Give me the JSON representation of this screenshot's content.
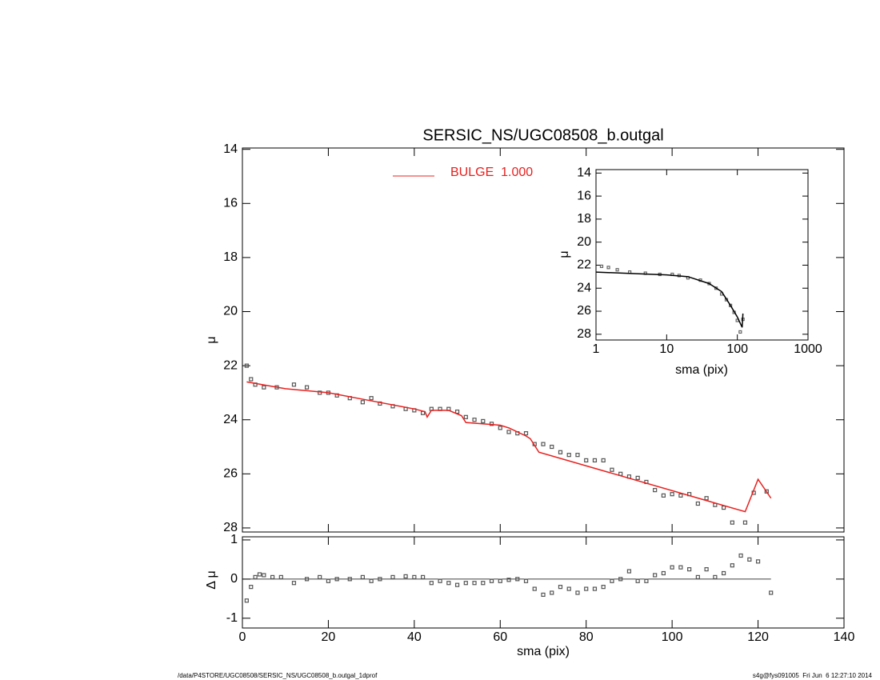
{
  "chart_data": [
    {
      "type": "scatter",
      "title": "SERSIC_NS/UGC08508_b.outgal",
      "ylabel": "μ",
      "xlim": [
        0,
        140
      ],
      "xticks": [
        0,
        20,
        40,
        60,
        80,
        100,
        120,
        140
      ],
      "ylim": [
        28.15,
        13.95
      ],
      "yticks": [
        14,
        16,
        18,
        20,
        22,
        24,
        26,
        28
      ],
      "legend": "top-center",
      "series": [
        {
          "mode": "markers",
          "color": "#555555",
          "x": [
            1,
            2,
            3,
            5,
            8,
            12,
            15,
            18,
            20,
            22,
            25,
            28,
            30,
            32,
            35,
            38,
            40,
            42,
            44,
            46,
            48,
            50,
            52,
            54,
            56,
            58,
            60,
            62,
            64,
            66,
            68,
            70,
            72,
            74,
            76,
            78,
            80,
            82,
            84,
            86,
            88,
            90,
            92,
            94,
            96,
            98,
            100,
            102,
            104,
            106,
            108,
            110,
            112,
            114,
            117,
            119,
            122
          ],
          "values": [
            22,
            22.5,
            22.7,
            22.8,
            22.8,
            22.7,
            22.8,
            23,
            23,
            23.1,
            23.2,
            23.35,
            23.2,
            23.4,
            23.5,
            23.6,
            23.65,
            23.75,
            23.6,
            23.6,
            23.6,
            23.7,
            23.9,
            24,
            24.05,
            24.15,
            24.3,
            24.45,
            24.5,
            24.5,
            24.9,
            24.9,
            25,
            25.2,
            25.3,
            25.3,
            25.5,
            25.5,
            25.5,
            25.85,
            26,
            26.1,
            26.15,
            26.3,
            26.6,
            26.8,
            26.75,
            26.8,
            26.75,
            27.1,
            26.9,
            27.15,
            27.25,
            27.8,
            27.8,
            26.7,
            26.65
          ]
        },
        {
          "mode": "line",
          "name": "BULGE  1.000",
          "color": "#e8201e",
          "x": [
            1,
            10,
            20,
            30,
            40,
            42.5,
            43,
            44,
            48,
            51,
            52,
            60,
            62,
            66,
            67,
            69,
            117,
            120,
            123
          ],
          "values": [
            22.6,
            22.85,
            23,
            23.3,
            23.6,
            23.7,
            23.9,
            23.65,
            23.65,
            23.85,
            24.1,
            24.2,
            24.3,
            24.6,
            24.7,
            25.2,
            27.4,
            26.2,
            26.9
          ]
        }
      ]
    },
    {
      "type": "scatter",
      "xlabel": "sma (pix)",
      "ylabel": "Δ μ",
      "xlim": [
        0,
        140
      ],
      "xticks": [
        0,
        20,
        40,
        60,
        80,
        100,
        120,
        140
      ],
      "ylim": [
        -1.25,
        1.08
      ],
      "yticks": [
        -1,
        0,
        1
      ],
      "series": [
        {
          "mode": "markers",
          "color": "#555555",
          "x": [
            1,
            2,
            3,
            4,
            5,
            7,
            9,
            12,
            15,
            18,
            20,
            22,
            25,
            28,
            30,
            32,
            35,
            38,
            40,
            42,
            44,
            46,
            48,
            50,
            52,
            54,
            56,
            58,
            60,
            62,
            64,
            66,
            68,
            70,
            72,
            74,
            76,
            78,
            80,
            82,
            84,
            86,
            88,
            90,
            92,
            94,
            96,
            98,
            100,
            102,
            104,
            106,
            108,
            110,
            112,
            114,
            116,
            118,
            120,
            123
          ],
          "values": [
            -0.55,
            -0.2,
            0.05,
            0.12,
            0.1,
            0.05,
            0.05,
            -0.1,
            0,
            0.05,
            -0.05,
            0,
            0,
            0.05,
            -0.05,
            0,
            0.05,
            0.07,
            0.05,
            0.05,
            -0.1,
            -0.05,
            -0.1,
            -0.15,
            -0.1,
            -0.1,
            -0.1,
            -0.05,
            -0.05,
            -0.02,
            0,
            -0.05,
            -0.25,
            -0.4,
            -0.35,
            -0.2,
            -0.25,
            -0.35,
            -0.25,
            -0.25,
            -0.2,
            -0.05,
            0,
            0.2,
            -0.05,
            -0.05,
            0.1,
            0.15,
            0.3,
            0.3,
            0.25,
            0.05,
            0.25,
            0.05,
            0.15,
            0.35,
            0.6,
            0.5,
            0.45,
            -0.35
          ]
        }
      ]
    },
    {
      "type": "scatter",
      "xlabel": "sma (pix)",
      "ylabel": "μ",
      "xscale": "log",
      "xlim": [
        1,
        1000
      ],
      "xticks": [
        1,
        10,
        100,
        1000
      ],
      "ylim": [
        28.5,
        13.7
      ],
      "yticks": [
        14,
        16,
        18,
        20,
        22,
        24,
        26,
        28
      ],
      "series": [
        {
          "mode": "markers",
          "color": "#666666",
          "x": [
            1.2,
            1.5,
            2,
            3,
            5,
            8,
            12,
            15,
            20,
            30,
            40,
            50,
            60,
            70,
            80,
            90,
            100,
            110,
            120
          ],
          "values": [
            22.1,
            22.2,
            22.4,
            22.6,
            22.7,
            22.8,
            22.8,
            22.9,
            23.1,
            23.3,
            23.6,
            24,
            24.5,
            25,
            25.5,
            26.1,
            26.8,
            27.8,
            26.7
          ]
        },
        {
          "mode": "line",
          "color": "#000000",
          "x": [
            1,
            10,
            20,
            40,
            60,
            80,
            100,
            117,
            120
          ],
          "values": [
            22.6,
            22.85,
            23,
            23.6,
            24.3,
            25.5,
            26.5,
            27.4,
            26.2
          ]
        }
      ]
    }
  ],
  "footer": {
    "left": "/data/P4STORE/UGC08508/SERSIC_NS/UGC08508_b.outgal_1dprof",
    "right": "s4g@fys091005  Fri Jun  6 12:27:10 2014"
  }
}
